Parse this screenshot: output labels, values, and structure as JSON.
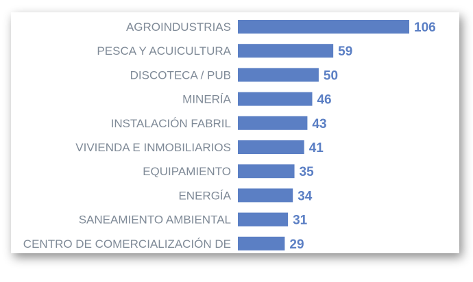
{
  "chart_data": {
    "type": "bar",
    "orientation": "horizontal",
    "categories": [
      "AGROINDUSTRIAS",
      "PESCA Y ACUICULTURA",
      "DISCOTECA / PUB",
      "MINERÍA",
      "INSTALACIÓN FABRIL",
      "VIVIENDA E INMOBILIARIOS",
      "EQUIPAMIENTO",
      "ENERGÍA",
      "SANEAMIENTO AMBIENTAL",
      "CENTRO DE COMERCIALIZACIÓN DE"
    ],
    "values": [
      106,
      59,
      50,
      46,
      43,
      41,
      35,
      34,
      31,
      29
    ],
    "value_labels": [
      "106",
      "59",
      "50",
      "46",
      "43",
      "41",
      "35",
      "34",
      "31",
      "29"
    ],
    "title": "",
    "xlabel": "",
    "ylabel": "",
    "xlim": [
      0,
      106
    ],
    "grid": false,
    "legend": "none",
    "bar_color": "#5b7fc4",
    "label_color": "#7f8a97",
    "value_color": "#5b7fc4"
  }
}
